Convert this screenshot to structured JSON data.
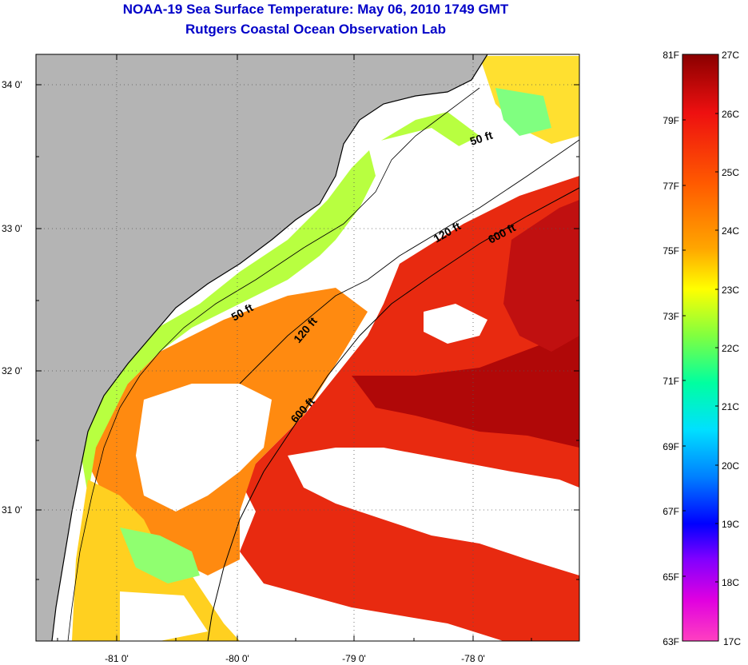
{
  "header": {
    "title_line1": "NOAA-19 Sea Surface Temperature:  May 06, 2010 1749 GMT",
    "title_line2": "Rutgers Coastal Ocean Observation Lab"
  },
  "map": {
    "lat_labels": [
      "34 0'",
      "33 0'",
      "32 0'",
      "31 0'"
    ],
    "lon_labels": [
      "-81 0'",
      "-80 0'",
      "-79 0'",
      "-78 0'"
    ],
    "contours": [
      "50 ft",
      "50 ft",
      "120 ft",
      "120 ft",
      "600 ft",
      "600 ft"
    ],
    "colors": {
      "land": "#b4b4b4",
      "cloud": "#ffffff",
      "warm": "#e02010",
      "hot": "#b00000",
      "mid": "#ff8000",
      "cool": "#c0ff40"
    }
  },
  "colorbar": {
    "fahrenheit": [
      "81F",
      "79F",
      "77F",
      "75F",
      "73F",
      "71F",
      "69F",
      "67F",
      "65F",
      "63F"
    ],
    "celsius": [
      "27C",
      "26C",
      "25C",
      "24C",
      "23C",
      "22C",
      "21C",
      "20C",
      "19C",
      "18C",
      "17C"
    ]
  }
}
